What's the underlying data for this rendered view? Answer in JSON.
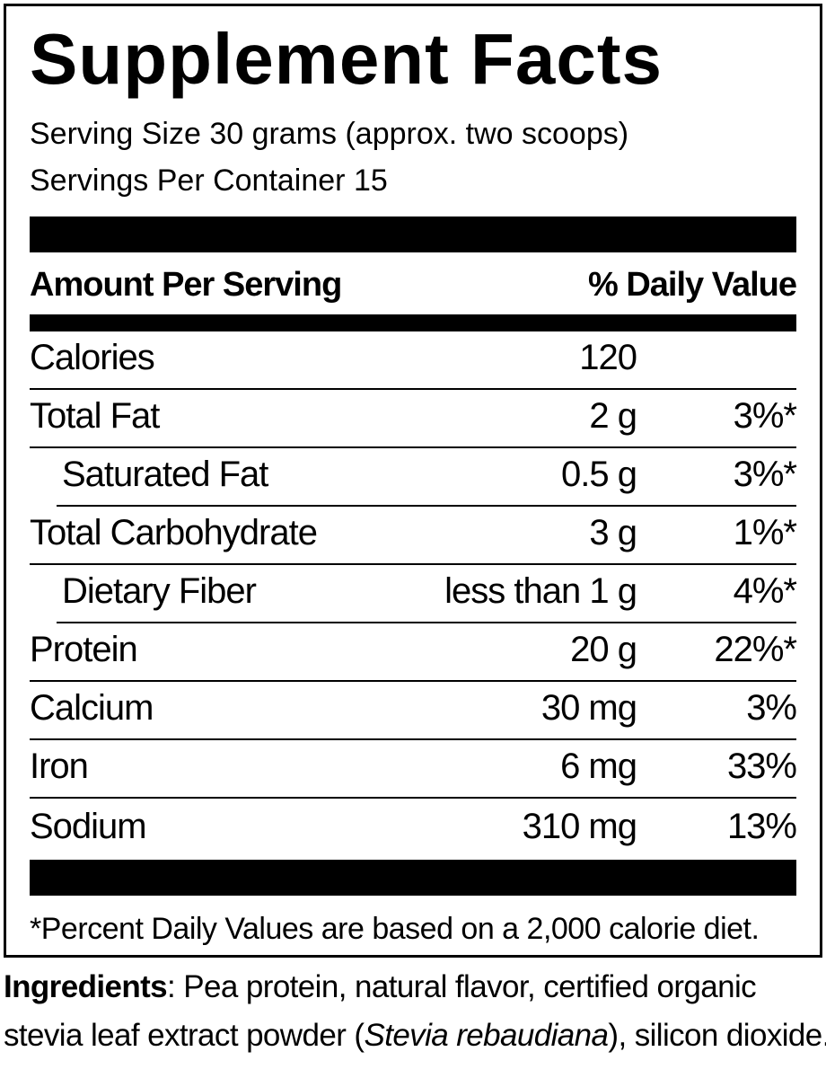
{
  "facts": {
    "title": "Supplement Facts",
    "serving_size": "Serving Size 30 grams (approx. two scoops)",
    "servings_per_container": "Servings Per Container 15",
    "amount_header": "Amount Per Serving",
    "dv_header": "% Daily Value",
    "rows": [
      {
        "name": "Calories",
        "amount": "120",
        "dv": ""
      },
      {
        "name": "Total Fat",
        "amount": "2 g",
        "dv": "3%*"
      },
      {
        "name": "Saturated Fat",
        "amount": "0.5 g",
        "dv": "3%*"
      },
      {
        "name": "Total Carbohydrate",
        "amount": "3 g",
        "dv": "1%*"
      },
      {
        "name": "Dietary Fiber",
        "amount": "less than 1 g",
        "dv": "4%*"
      },
      {
        "name": "Protein",
        "amount": "20 g",
        "dv": "22%*"
      },
      {
        "name": "Calcium",
        "amount": "30 mg",
        "dv": "3%"
      },
      {
        "name": "Iron",
        "amount": "6 mg",
        "dv": "33%"
      },
      {
        "name": "Sodium",
        "amount": "310 mg",
        "dv": "13%"
      }
    ],
    "footnote": "*Percent Daily Values are based on a 2,000 calorie diet."
  },
  "ingredients": {
    "label": "Ingredients",
    "separator": ":",
    "text_1": " Pea protein, natural flavor, certified organic",
    "text_2": "stevia leaf extract powder (",
    "botanical": "Stevia rebaudiana",
    "text_3": "), silicon dioxide."
  }
}
